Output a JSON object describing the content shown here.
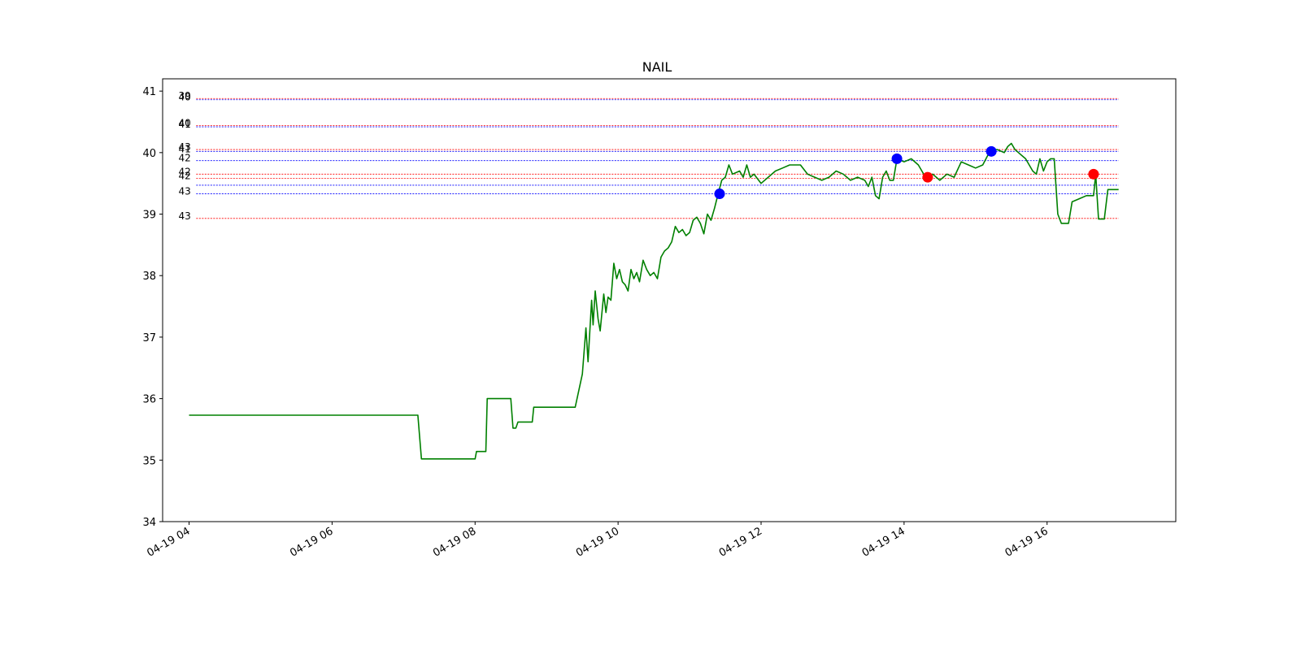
{
  "chart_data": {
    "type": "line",
    "title": "NAIL",
    "xlabel": "",
    "ylabel": "",
    "ylim": [
      34,
      41.2
    ],
    "xlim_hours": [
      3.63,
      17.8
    ],
    "x_ticks": [
      {
        "hour": 4,
        "label": "04-19 04"
      },
      {
        "hour": 6,
        "label": "04-19 06"
      },
      {
        "hour": 8,
        "label": "04-19 08"
      },
      {
        "hour": 10,
        "label": "04-19 10"
      },
      {
        "hour": 12,
        "label": "04-19 12"
      },
      {
        "hour": 14,
        "label": "04-19 14"
      },
      {
        "hour": 16,
        "label": "04-19 16"
      }
    ],
    "y_ticks": [
      34,
      35,
      36,
      37,
      38,
      39,
      40,
      41
    ],
    "grid": false,
    "legend": "none",
    "series": [
      {
        "color": "#008000",
        "points": [
          [
            4.0,
            35.73
          ],
          [
            7.2,
            35.73
          ],
          [
            7.25,
            35.02
          ],
          [
            8.0,
            35.02
          ],
          [
            8.02,
            35.14
          ],
          [
            8.15,
            35.14
          ],
          [
            8.17,
            36.0
          ],
          [
            8.5,
            36.0
          ],
          [
            8.53,
            35.52
          ],
          [
            8.57,
            35.52
          ],
          [
            8.6,
            35.62
          ],
          [
            8.8,
            35.62
          ],
          [
            8.82,
            35.86
          ],
          [
            9.4,
            35.86
          ],
          [
            9.5,
            36.4
          ],
          [
            9.55,
            37.15
          ],
          [
            9.58,
            36.6
          ],
          [
            9.63,
            37.6
          ],
          [
            9.65,
            37.2
          ],
          [
            9.68,
            37.75
          ],
          [
            9.72,
            37.3
          ],
          [
            9.75,
            37.1
          ],
          [
            9.8,
            37.7
          ],
          [
            9.83,
            37.4
          ],
          [
            9.86,
            37.65
          ],
          [
            9.9,
            37.6
          ],
          [
            9.94,
            38.2
          ],
          [
            9.98,
            37.95
          ],
          [
            10.02,
            38.1
          ],
          [
            10.06,
            37.9
          ],
          [
            10.1,
            37.85
          ],
          [
            10.14,
            37.75
          ],
          [
            10.18,
            38.1
          ],
          [
            10.22,
            37.95
          ],
          [
            10.26,
            38.05
          ],
          [
            10.3,
            37.9
          ],
          [
            10.35,
            38.25
          ],
          [
            10.4,
            38.1
          ],
          [
            10.45,
            38.0
          ],
          [
            10.5,
            38.05
          ],
          [
            10.55,
            37.95
          ],
          [
            10.6,
            38.3
          ],
          [
            10.65,
            38.4
          ],
          [
            10.7,
            38.45
          ],
          [
            10.75,
            38.55
          ],
          [
            10.8,
            38.8
          ],
          [
            10.85,
            38.7
          ],
          [
            10.9,
            38.75
          ],
          [
            10.95,
            38.65
          ],
          [
            11.0,
            38.7
          ],
          [
            11.05,
            38.9
          ],
          [
            11.1,
            38.95
          ],
          [
            11.15,
            38.85
          ],
          [
            11.2,
            38.68
          ],
          [
            11.25,
            39.0
          ],
          [
            11.3,
            38.9
          ],
          [
            11.35,
            39.1
          ],
          [
            11.4,
            39.33
          ],
          [
            11.45,
            39.55
          ],
          [
            11.5,
            39.6
          ],
          [
            11.55,
            39.8
          ],
          [
            11.6,
            39.65
          ],
          [
            11.7,
            39.7
          ],
          [
            11.75,
            39.6
          ],
          [
            11.8,
            39.8
          ],
          [
            11.85,
            39.6
          ],
          [
            11.9,
            39.65
          ],
          [
            12.0,
            39.5
          ],
          [
            12.1,
            39.6
          ],
          [
            12.2,
            39.7
          ],
          [
            12.3,
            39.75
          ],
          [
            12.4,
            39.8
          ],
          [
            12.55,
            39.8
          ],
          [
            12.65,
            39.65
          ],
          [
            12.75,
            39.6
          ],
          [
            12.85,
            39.55
          ],
          [
            12.95,
            39.6
          ],
          [
            13.05,
            39.7
          ],
          [
            13.15,
            39.65
          ],
          [
            13.25,
            39.55
          ],
          [
            13.35,
            39.6
          ],
          [
            13.45,
            39.55
          ],
          [
            13.5,
            39.45
          ],
          [
            13.55,
            39.6
          ],
          [
            13.6,
            39.3
          ],
          [
            13.65,
            39.25
          ],
          [
            13.7,
            39.6
          ],
          [
            13.75,
            39.7
          ],
          [
            13.8,
            39.55
          ],
          [
            13.85,
            39.55
          ],
          [
            13.9,
            39.9
          ],
          [
            14.0,
            39.85
          ],
          [
            14.1,
            39.9
          ],
          [
            14.2,
            39.8
          ],
          [
            14.3,
            39.6
          ],
          [
            14.4,
            39.65
          ],
          [
            14.5,
            39.55
          ],
          [
            14.6,
            39.65
          ],
          [
            14.7,
            39.6
          ],
          [
            14.8,
            39.85
          ],
          [
            14.9,
            39.8
          ],
          [
            15.0,
            39.75
          ],
          [
            15.1,
            39.8
          ],
          [
            15.2,
            40.02
          ],
          [
            15.3,
            40.05
          ],
          [
            15.4,
            40.0
          ],
          [
            15.45,
            40.1
          ],
          [
            15.5,
            40.15
          ],
          [
            15.55,
            40.05
          ],
          [
            15.6,
            40.0
          ],
          [
            15.7,
            39.9
          ],
          [
            15.8,
            39.7
          ],
          [
            15.85,
            39.65
          ],
          [
            15.9,
            39.9
          ],
          [
            15.95,
            39.7
          ],
          [
            16.0,
            39.85
          ],
          [
            16.05,
            39.9
          ],
          [
            16.1,
            39.9
          ],
          [
            16.15,
            39.0
          ],
          [
            16.2,
            38.85
          ],
          [
            16.3,
            38.85
          ],
          [
            16.35,
            39.2
          ],
          [
            16.45,
            39.25
          ],
          [
            16.55,
            39.3
          ],
          [
            16.65,
            39.3
          ],
          [
            16.68,
            39.65
          ],
          [
            16.72,
            38.92
          ],
          [
            16.8,
            38.92
          ],
          [
            16.85,
            39.4
          ],
          [
            17.0,
            39.4
          ]
        ]
      }
    ],
    "markers": [
      {
        "hour": 11.42,
        "value": 39.33,
        "color": "#0000ff"
      },
      {
        "hour": 13.9,
        "value": 39.9,
        "color": "#0000ff"
      },
      {
        "hour": 15.22,
        "value": 40.02,
        "color": "#0000ff"
      },
      {
        "hour": 14.33,
        "value": 39.6,
        "color": "#ff0000"
      },
      {
        "hour": 16.65,
        "value": 39.65,
        "color": "#ff0000"
      }
    ],
    "levels": [
      {
        "value": 40.88,
        "color": "#ff0000",
        "label": "39"
      },
      {
        "value": 40.86,
        "color": "#0000ff",
        "label": "40"
      },
      {
        "value": 40.44,
        "color": "#ff0000",
        "label": "40"
      },
      {
        "value": 40.42,
        "color": "#0000ff",
        "label": "41"
      },
      {
        "value": 40.05,
        "color": "#ff0000",
        "label": "43"
      },
      {
        "value": 40.02,
        "color": "#0000ff",
        "label": "41"
      },
      {
        "value": 39.87,
        "color": "#0000ff",
        "label": "42"
      },
      {
        "value": 39.65,
        "color": "#ff0000",
        "label": "42"
      },
      {
        "value": 39.58,
        "color": "#ff0000",
        "label": "42"
      },
      {
        "value": 39.47,
        "color": "#0000ff",
        "label": ""
      },
      {
        "value": 39.33,
        "color": "#0000ff",
        "label": "43"
      },
      {
        "value": 38.93,
        "color": "#ff0000",
        "label": "43"
      }
    ],
    "level_extent_hours": [
      4.1,
      17.0
    ]
  }
}
